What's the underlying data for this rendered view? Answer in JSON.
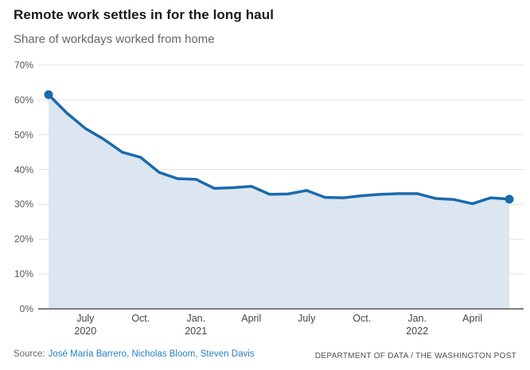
{
  "header": {
    "title": "Remote work settles in for the long haul",
    "subtitle": "Share of workdays worked from home"
  },
  "chart_data": {
    "type": "area",
    "title": "Remote work settles in for the long haul",
    "subtitle": "Share of workdays worked from home",
    "unit": "percent",
    "grid": "horizontal",
    "legend": "none",
    "ylim": [
      0,
      70
    ],
    "y_ticks": [
      "0%",
      "10%",
      "20%",
      "30%",
      "40%",
      "50%",
      "60%",
      "70%"
    ],
    "x": [
      "May 2020",
      "June 2020",
      "July 2020",
      "Aug. 2020",
      "Sep. 2020",
      "Oct. 2020",
      "Nov. 2020",
      "Dec. 2020",
      "Jan. 2021",
      "Feb. 2021",
      "March 2021",
      "April 2021",
      "May 2021",
      "June 2021",
      "July 2021",
      "Aug. 2021",
      "Sep. 2021",
      "Oct. 2021",
      "Nov. 2021",
      "Dec. 2021",
      "Jan. 2022",
      "Feb. 2022",
      "March 2022",
      "April 2022",
      "May 2022",
      "June 2022"
    ],
    "values": [
      61.5,
      56.2,
      51.8,
      48.7,
      45.0,
      43.5,
      39.2,
      37.4,
      37.2,
      34.6,
      34.8,
      35.2,
      32.9,
      33.0,
      34.0,
      32.0,
      31.9,
      32.5,
      32.9,
      33.1,
      33.1,
      31.7,
      31.4,
      30.2,
      31.9,
      31.5
    ],
    "x_ticks": [
      {
        "index": 2,
        "label": "July",
        "year": "2020"
      },
      {
        "index": 5,
        "label": "Oct.",
        "year": ""
      },
      {
        "index": 8,
        "label": "Jan.",
        "year": "2021"
      },
      {
        "index": 11,
        "label": "April",
        "year": ""
      },
      {
        "index": 14,
        "label": "July",
        "year": ""
      },
      {
        "index": 17,
        "label": "Oct.",
        "year": ""
      },
      {
        "index": 20,
        "label": "Jan.",
        "year": "2022"
      },
      {
        "index": 23,
        "label": "April",
        "year": ""
      }
    ],
    "endpoint_markers": [
      0,
      25
    ],
    "colors": {
      "line": "#1a6aad",
      "fill": "#dbe6f1",
      "grid": "#e0e0e0",
      "axis": "#7d7d7d"
    }
  },
  "footer": {
    "source_label": "Source:",
    "source_links": [
      "José María Barrero",
      "Nicholas Bloom",
      "Steven Davis"
    ],
    "attribution": "DEPARTMENT OF DATA / THE WASHINGTON POST"
  }
}
